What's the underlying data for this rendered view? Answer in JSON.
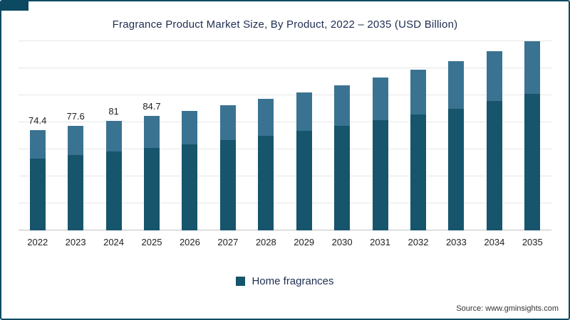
{
  "title": "Fragrance Product Market Size, By Product, 2022 – 2035 (USD Billion)",
  "source": "Source: www.gminsights.com",
  "colors": {
    "frame": "#0d4a61",
    "bar_dark": "#16556c",
    "bar_light": "#3a7392",
    "gridline": "#e6e6e6",
    "axis": "#c2c2c2"
  },
  "legend": {
    "items": [
      {
        "label": "Home fragrances",
        "color": "#16556c"
      }
    ]
  },
  "chart_data": {
    "type": "bar",
    "stacked": true,
    "title": "Fragrance Product Market Size, By Product, 2022 – 2035 (USD Billion)",
    "categories": [
      "2022",
      "2023",
      "2024",
      "2025",
      "2026",
      "2027",
      "2028",
      "2029",
      "2030",
      "2031",
      "2032",
      "2033",
      "2034",
      "2035"
    ],
    "series": [
      {
        "name": "Home fragrances",
        "color": "#16556c",
        "values": [
          53.6,
          55.9,
          58.3,
          61.0,
          63.8,
          66.8,
          70.1,
          73.6,
          77.3,
          81.4,
          85.7,
          90.4,
          95.3,
          100.7
        ]
      },
      {
        "name": "",
        "color": "#3a7392",
        "values": [
          20.8,
          21.7,
          22.7,
          23.7,
          24.8,
          26.0,
          27.2,
          28.6,
          30.1,
          31.6,
          33.3,
          35.1,
          37.1,
          39.1
        ]
      }
    ],
    "totals": [
      74.4,
      77.6,
      81,
      84.7,
      88.6,
      92.8,
      97.3,
      102.2,
      107.4,
      113.0,
      119.0,
      125.5,
      132.4,
      139.8
    ],
    "bar_value_labels": [
      "74.4",
      "77.6",
      "81",
      "84.7",
      "",
      "",
      "",
      "",
      "",
      "",
      "",
      "",
      "",
      ""
    ],
    "xlabel": "",
    "ylabel": "",
    "ylim": [
      0,
      145
    ],
    "grid": "horizontal",
    "legend_position": "bottom",
    "legend_entries": [
      "Home fragrances"
    ]
  }
}
